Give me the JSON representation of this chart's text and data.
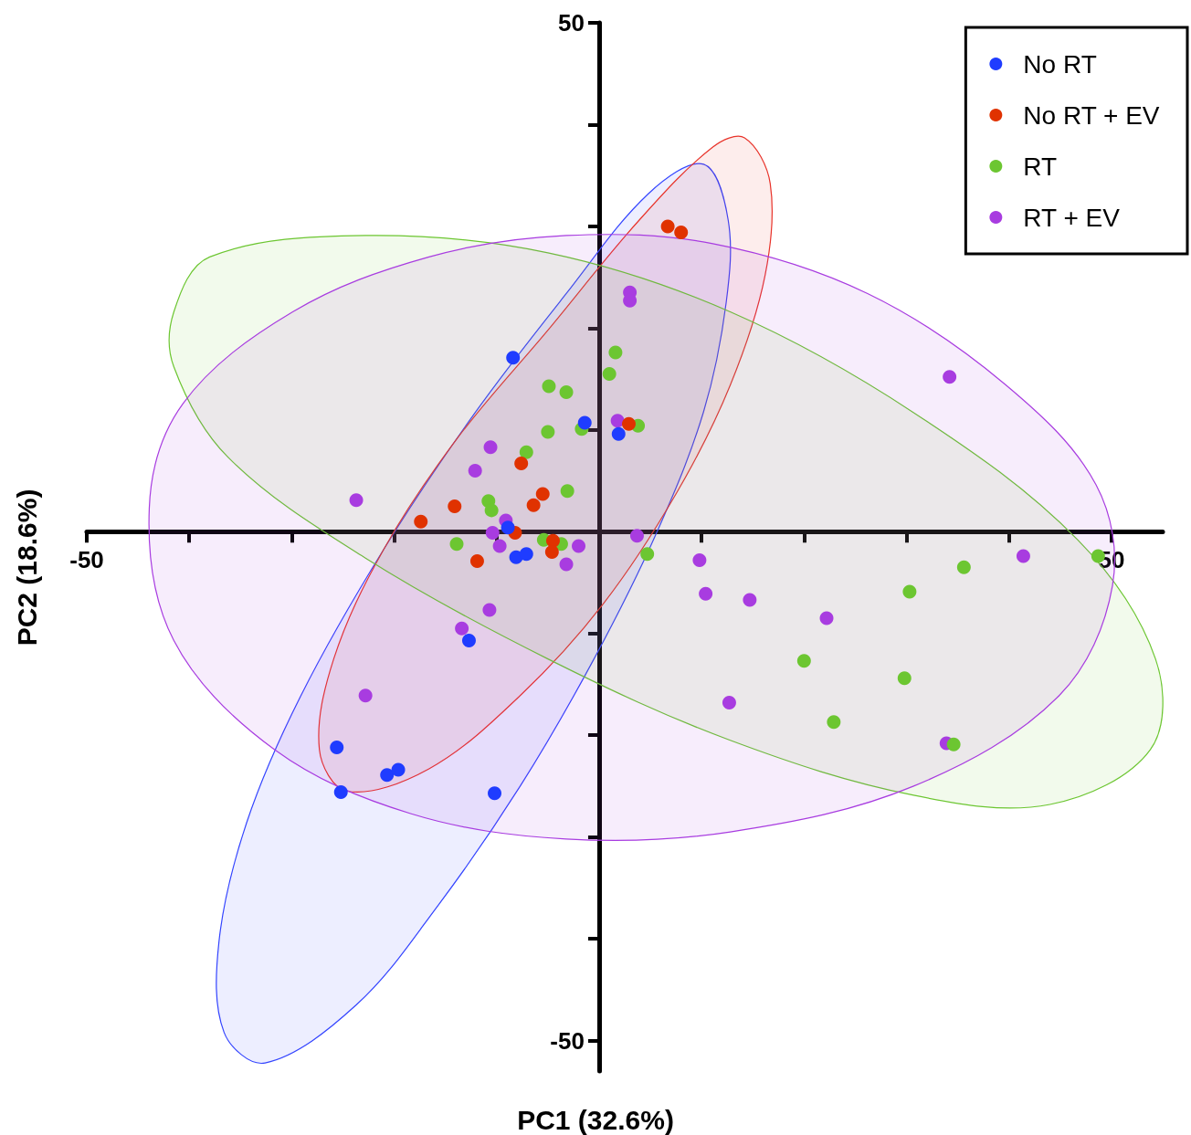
{
  "chart_data": {
    "type": "scatter",
    "xlabel": "PC1 (32.6%)",
    "ylabel": "PC2 (18.6%)",
    "xlim": [
      -50,
      55
    ],
    "ylim": [
      -53,
      50
    ],
    "xticks": [
      -50,
      {
        "value": -40,
        "label": null
      },
      {
        "value": -30,
        "label": null
      },
      {
        "value": -20,
        "label": null
      },
      {
        "value": -10,
        "label": null
      },
      {
        "value": 0,
        "label": null
      },
      {
        "value": 10,
        "label": null
      },
      {
        "value": 20,
        "label": null
      },
      {
        "value": 30,
        "label": null
      },
      {
        "value": 40,
        "label": null
      },
      50
    ],
    "yticks": [
      -50,
      {
        "value": -40,
        "label": null
      },
      {
        "value": -30,
        "label": null
      },
      {
        "value": -20,
        "label": null
      },
      {
        "value": -10,
        "label": null
      },
      {
        "value": 0,
        "label": null
      },
      {
        "value": 10,
        "label": null
      },
      {
        "value": 20,
        "label": null
      },
      {
        "value": 30,
        "label": null
      },
      {
        "value": 40,
        "label": null
      },
      50
    ],
    "grid": false,
    "legend": "top right",
    "marker": "circle",
    "series": [
      {
        "type": "area",
        "marker": "none",
        "color": "#3344ff",
        "x": [
          10.2,
          12.6,
          12.4,
          10.2,
          5.7,
          -0.5,
          -7.7,
          -15.7,
          -23.7,
          -32.6,
          -36.6,
          -37.1,
          -34.4,
          -29.1,
          -21.0,
          -12.1,
          -3.2,
          4.8
        ],
        "values": [
          36.1,
          30.6,
          22.5,
          11.8,
          0.1,
          -12.5,
          -25.0,
          -36.7,
          -46.5,
          -52.2,
          -49.2,
          -40.3,
          -28.6,
          -16.1,
          -1.7,
          11.7,
          23.4,
          33.2
        ]
      },
      {
        "type": "area",
        "marker": "none",
        "color": "#e8332a",
        "x": [
          14.2,
          16.7,
          16.2,
          12.8,
          7.5,
          0.4,
          -7.7,
          -16.6,
          -24.6,
          -27.3,
          -25.9,
          -21.0,
          -13.9,
          -5.0,
          3.9,
          11.1
        ],
        "values": [
          38.7,
          34.2,
          25.2,
          14.4,
          3.7,
          -7.1,
          -16.1,
          -23.3,
          -25.5,
          -21.4,
          -12.5,
          -1.7,
          9.1,
          19.8,
          30.6,
          37.8
        ]
      },
      {
        "type": "area",
        "marker": "none",
        "color": "#6cc631",
        "x": [
          -41.5,
          -38.0,
          -22.8,
          -5.0,
          12.8,
          30.7,
          46.7,
          54.3,
          53.8,
          44.0,
          30.7,
          12.8,
          -5.0,
          -22.8,
          -36.2,
          -41.5
        ],
        "values": [
          21.6,
          27.0,
          29.1,
          27.4,
          21.6,
          11.7,
          -0.8,
          -12.5,
          -21.4,
          -26.8,
          -25.9,
          -20.5,
          -12.5,
          -2.6,
          7.3,
          16.2
        ]
      },
      {
        "type": "area",
        "marker": "none",
        "color": "#a83ce0",
        "x": [
          -43.9,
          -40.6,
          -29.9,
          -16.6,
          -3.2,
          11.1,
          26.2,
          39.6,
          48.5,
          50.1,
          44.9,
          30.7,
          12.8,
          -3.2,
          -18.4,
          -31.7,
          -41.5
        ],
        "values": [
          2.3,
          12.6,
          21.6,
          27.0,
          29.1,
          28.3,
          23.4,
          14.5,
          4.6,
          -5.3,
          -16.1,
          -25.0,
          -29.5,
          -30.2,
          -27.7,
          -21.4,
          -10.7
        ]
      },
      {
        "name": "No RT",
        "color": "#1f3cff",
        "x": [
          -8.4,
          -1.4,
          1.9,
          -8.9,
          -8.1,
          -7.1,
          -12.7,
          -25.6,
          -25.2,
          -20.7,
          -19.6,
          -10.2
        ],
        "values": [
          17.1,
          10.7,
          9.6,
          0.4,
          -2.5,
          -2.2,
          -10.7,
          -21.2,
          -25.6,
          -23.9,
          -23.4,
          -25.7
        ]
      },
      {
        "name": "No RT + EV",
        "color": "#e03200",
        "x": [
          6.7,
          8.0,
          2.9,
          -7.6,
          -5.5,
          -14.1,
          -6.4,
          -17.4,
          -8.2,
          -4.5,
          -4.6,
          -11.9
        ],
        "values": [
          30.0,
          29.4,
          10.6,
          6.7,
          3.7,
          2.5,
          2.6,
          1.0,
          -0.1,
          -0.9,
          -2.0,
          -2.9
        ]
      },
      {
        "name": "RT",
        "color": "#6cc631",
        "x": [
          1.6,
          1.0,
          -4.9,
          -3.2,
          -5.0,
          -1.7,
          3.8,
          -7.1,
          -3.1,
          -10.8,
          -10.5,
          -13.9,
          -5.4,
          -3.7,
          4.7,
          35.6,
          30.3,
          48.7,
          20.0,
          29.8,
          22.9,
          34.6
        ],
        "values": [
          17.6,
          15.5,
          14.3,
          13.7,
          9.8,
          10.1,
          10.4,
          7.8,
          4.0,
          3.0,
          2.1,
          -1.2,
          -0.8,
          -1.2,
          -2.2,
          -3.5,
          -5.9,
          -2.4,
          -12.7,
          -14.4,
          -18.7,
          -20.9
        ]
      },
      {
        "name": "RT + EV",
        "color": "#a83ce0",
        "x": [
          3.0,
          3.0,
          34.2,
          1.8,
          -10.6,
          -12.1,
          -23.7,
          -9.1,
          -10.4,
          -9.7,
          -2.0,
          3.7,
          -3.2,
          9.8,
          41.4,
          10.4,
          14.7,
          -10.7,
          -13.4,
          22.2,
          -22.8,
          12.7,
          33.9
        ],
        "values": [
          23.5,
          22.7,
          15.2,
          10.9,
          8.3,
          6.0,
          3.1,
          1.1,
          -0.1,
          -1.4,
          -1.4,
          -0.4,
          -3.2,
          -2.8,
          -2.4,
          -6.1,
          -6.7,
          -7.7,
          -9.5,
          -8.5,
          -16.1,
          -16.8,
          -20.8
        ]
      }
    ]
  }
}
